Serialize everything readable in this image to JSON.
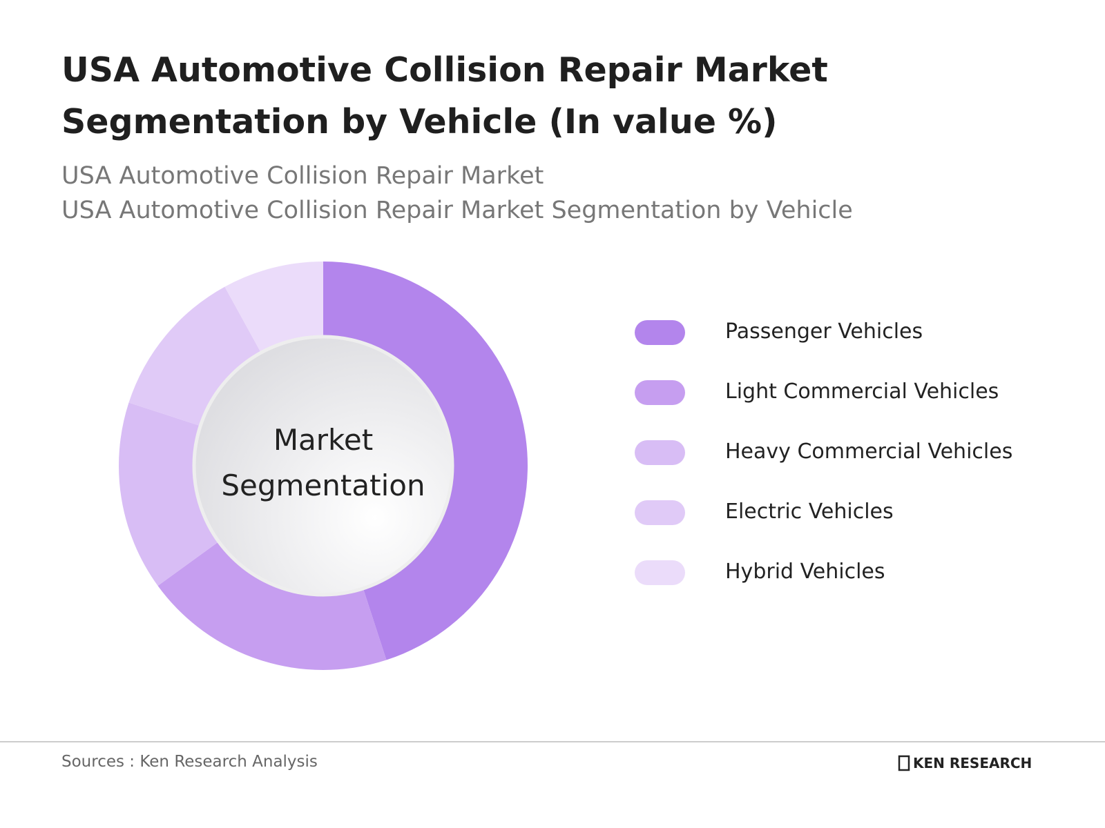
{
  "chart_data": {
    "type": "pie",
    "title": "USA Automotive Collision Repair Market Segmentation by Vehicle (In value %)",
    "subtitles": [
      "USA Automotive Collision Repair Market",
      "USA Automotive Collision Repair Market Segmentation by Vehicle"
    ],
    "center_label": "Market Segmentation",
    "categories": [
      "Passenger Vehicles",
      "Light Commercial Vehicles",
      "Heavy Commercial Vehicles",
      "Electric Vehicles",
      "Hybrid Vehicles"
    ],
    "values": [
      45,
      20,
      15,
      12,
      8
    ],
    "colors": [
      "#b385ec",
      "#c69ef0",
      "#d8bdf5",
      "#e0caf7",
      "#ebdcfa"
    ],
    "legend": "right",
    "source": "Sources : Ken Research Analysis",
    "logo": "KEN RESEARCH"
  }
}
